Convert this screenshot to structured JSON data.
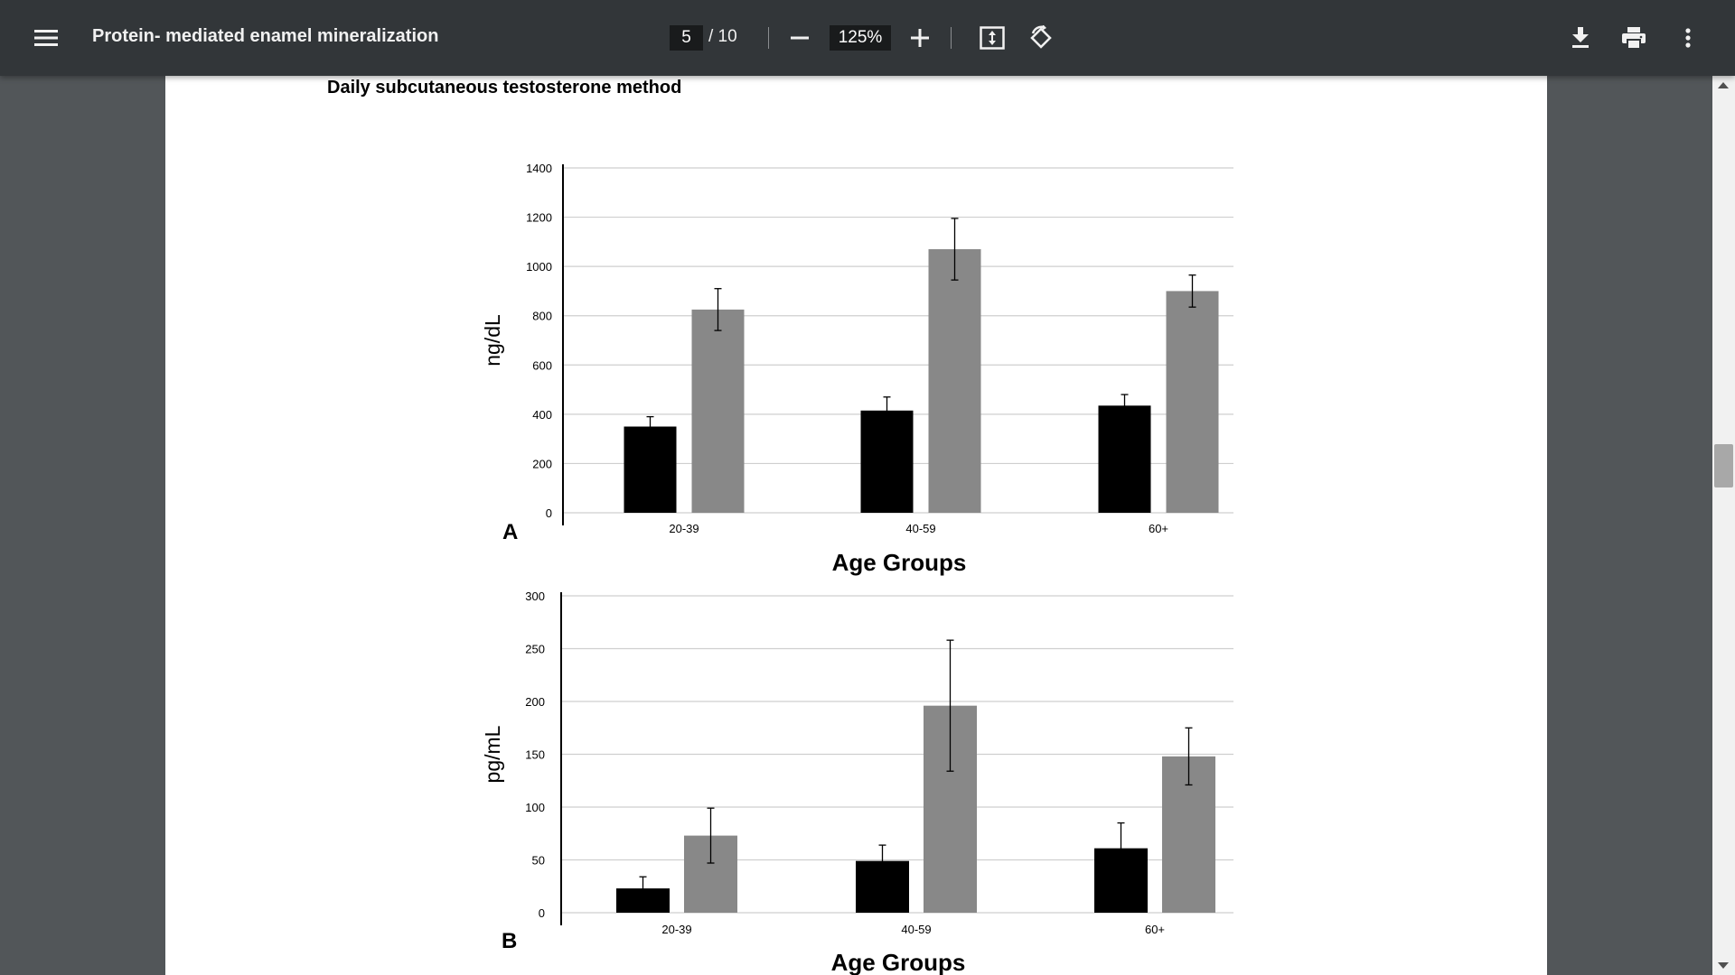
{
  "toolbar": {
    "menu_icon": "hamburger-menu-icon",
    "title": "Protein- mediated enamel mineralization",
    "current_page": "5",
    "total_pages": "/ 10",
    "zoom_out_icon": "minus-icon",
    "zoom_level": "125%",
    "zoom_in_icon": "plus-icon",
    "fit_page_icon": "fit-to-page-icon",
    "rotate_icon": "rotate-counterclockwise-icon",
    "download_icon": "download-icon",
    "print_icon": "print-icon",
    "more_icon": "more-vertical-icon",
    "colors": {
      "bar": "#323639",
      "text": "#f1f1f1",
      "input_bg": "#191b1c",
      "viewer_bg": "#525659"
    }
  },
  "document": {
    "section_title": "Daily subcutaneous testosterone method"
  },
  "chart_data": [
    {
      "type": "bar",
      "panel_label": "A",
      "title": "",
      "xlabel": "Age Groups",
      "ylabel": "ng/dL",
      "ylim": [
        0,
        1400
      ],
      "yticks": [
        0,
        200,
        400,
        600,
        800,
        1000,
        1200,
        1400
      ],
      "grid": true,
      "categories": [
        "20-39",
        "40-59",
        "60+"
      ],
      "series": [
        {
          "name": "series-1",
          "color": "#000000",
          "values": [
            350,
            415,
            435
          ],
          "errors": [
            40,
            55,
            45
          ]
        },
        {
          "name": "series-2",
          "color": "#888888",
          "values": [
            825,
            1070,
            900
          ],
          "errors": [
            85,
            125,
            65
          ]
        }
      ]
    },
    {
      "type": "bar",
      "panel_label": "B",
      "title": "",
      "xlabel": "Age Groups",
      "ylabel": "pg/mL",
      "ylim": [
        0,
        300
      ],
      "yticks": [
        0,
        50,
        100,
        150,
        200,
        250,
        300
      ],
      "grid": true,
      "categories": [
        "20-39",
        "40-59",
        "60+"
      ],
      "series": [
        {
          "name": "series-1",
          "color": "#000000",
          "values": [
            23,
            49,
            61
          ],
          "errors": [
            11,
            15,
            24
          ]
        },
        {
          "name": "series-2",
          "color": "#888888",
          "values": [
            73,
            196,
            148
          ],
          "errors": [
            26,
            62,
            27
          ]
        }
      ]
    }
  ]
}
